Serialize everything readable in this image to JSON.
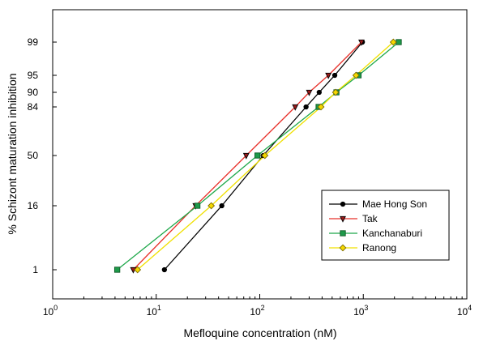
{
  "chart_data": {
    "type": "line",
    "xlabel": "Mefloquine concentration (nM)",
    "ylabel": "% Schizont maturation inhibition",
    "x_scale": "log",
    "y_scale": "probit",
    "xlim": [
      1,
      10000
    ],
    "x_ticks": [
      {
        "value": 1,
        "base": "10",
        "exp": "0"
      },
      {
        "value": 10,
        "base": "10",
        "exp": "1"
      },
      {
        "value": 100,
        "base": "10",
        "exp": "2"
      },
      {
        "value": 1000,
        "base": "10",
        "exp": "3"
      },
      {
        "value": 10000,
        "base": "10",
        "exp": "4"
      }
    ],
    "y_ticks": [
      {
        "value": 1,
        "label": "1"
      },
      {
        "value": 16,
        "label": "16"
      },
      {
        "value": 50,
        "label": "50"
      },
      {
        "value": 84,
        "label": "84"
      },
      {
        "value": 90,
        "label": "90"
      },
      {
        "value": 95,
        "label": "95"
      },
      {
        "value": 99,
        "label": "99"
      }
    ],
    "grid": false,
    "legend_position": "lower-right",
    "series": [
      {
        "name": "Mae Hong Son",
        "color": "#000000",
        "marker": "circle",
        "marker_fill": "#000000",
        "points": [
          [
            12,
            1
          ],
          [
            43,
            16
          ],
          [
            108,
            50
          ],
          [
            280,
            84
          ],
          [
            375,
            90
          ],
          [
            530,
            95
          ],
          [
            980,
            99
          ]
        ]
      },
      {
        "name": "Tak",
        "color": "#e8302a",
        "marker": "triangle-down",
        "marker_fill": "#9a1a1a",
        "points": [
          [
            6,
            1
          ],
          [
            24,
            16
          ],
          [
            74,
            50
          ],
          [
            220,
            84
          ],
          [
            300,
            90
          ],
          [
            460,
            95
          ],
          [
            960,
            99
          ]
        ]
      },
      {
        "name": "Kanchanaburi",
        "color": "#1ea84a",
        "marker": "square",
        "marker_fill": "#1e9a4a",
        "points": [
          [
            4.2,
            1
          ],
          [
            25,
            16
          ],
          [
            95,
            50
          ],
          [
            370,
            84
          ],
          [
            550,
            90
          ],
          [
            900,
            95
          ],
          [
            2200,
            99
          ]
        ]
      },
      {
        "name": "Ranong",
        "color": "#f0e000",
        "marker": "diamond",
        "marker_fill": "#f5d800",
        "points": [
          [
            6.6,
            1
          ],
          [
            34,
            16
          ],
          [
            112,
            50
          ],
          [
            390,
            84
          ],
          [
            540,
            90
          ],
          [
            850,
            95
          ],
          [
            1950,
            99
          ]
        ]
      }
    ]
  }
}
